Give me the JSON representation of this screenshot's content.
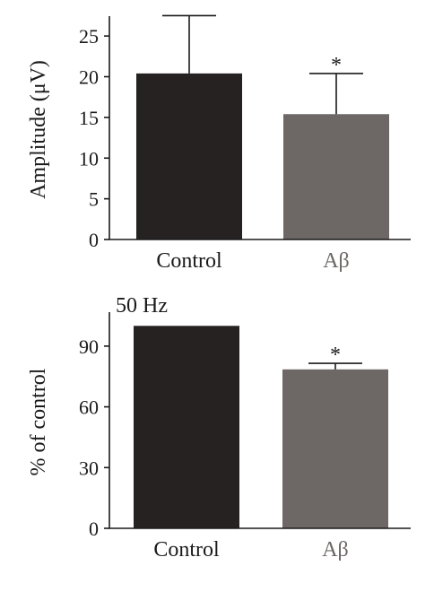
{
  "chart_data": [
    {
      "type": "bar",
      "categories": [
        "Control",
        "Aβ"
      ],
      "values": [
        20.4,
        15.4
      ],
      "errors": [
        7.1,
        5.0
      ],
      "significance": [
        "",
        "*"
      ],
      "ylabel": "Amplitude (μV)",
      "ylim": [
        0,
        27
      ],
      "yticks": [
        0,
        5,
        10,
        15,
        20,
        25
      ],
      "colors": [
        "#262222",
        "#6d6766"
      ],
      "category_label_colors": [
        "#1a1a1a",
        "#6d6766"
      ]
    },
    {
      "type": "bar",
      "annotation": "50 Hz",
      "categories": [
        "Control",
        "Aβ"
      ],
      "values": [
        100,
        78.5
      ],
      "errors": [
        0,
        3.0
      ],
      "significance": [
        "",
        "*"
      ],
      "ylabel": "% of control",
      "ylim": [
        0,
        105
      ],
      "yticks": [
        0,
        30,
        60,
        90
      ],
      "colors": [
        "#262222",
        "#6d6766"
      ],
      "category_label_colors": [
        "#1a1a1a",
        "#6d6766"
      ]
    }
  ]
}
